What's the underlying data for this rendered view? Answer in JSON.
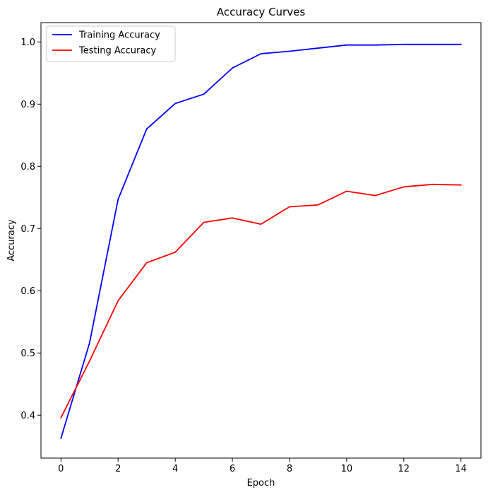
{
  "chart_data": {
    "type": "line",
    "title": "Accuracy Curves",
    "xlabel": "Epoch",
    "ylabel": "Accuracy",
    "x": [
      0,
      1,
      2,
      3,
      4,
      5,
      6,
      7,
      8,
      9,
      10,
      11,
      12,
      13,
      14
    ],
    "xlim": [
      -0.7,
      14.7
    ],
    "ylim": [
      0.331,
      1.031
    ],
    "xticks": [
      0,
      2,
      4,
      6,
      8,
      10,
      12,
      14
    ],
    "yticks": [
      0.4,
      0.5,
      0.6,
      0.7,
      0.8,
      0.9,
      1.0
    ],
    "xtick_labels": [
      "0",
      "2",
      "4",
      "6",
      "8",
      "10",
      "12",
      "14"
    ],
    "ytick_labels": [
      "0.4",
      "0.5",
      "0.6",
      "0.7",
      "0.8",
      "0.9",
      "1.0"
    ],
    "grid": false,
    "legend_position": "top-left",
    "series": [
      {
        "name": "Training Accuracy",
        "color": "#0000ff",
        "values": [
          0.363,
          0.516,
          0.747,
          0.86,
          0.901,
          0.916,
          0.958,
          0.981,
          0.985,
          0.99,
          0.995,
          0.995,
          0.996,
          0.996,
          0.996
        ]
      },
      {
        "name": "Testing Accuracy",
        "color": "#ff0000",
        "values": [
          0.396,
          0.487,
          0.584,
          0.645,
          0.662,
          0.71,
          0.717,
          0.707,
          0.735,
          0.738,
          0.76,
          0.753,
          0.767,
          0.771,
          0.77
        ]
      }
    ]
  }
}
